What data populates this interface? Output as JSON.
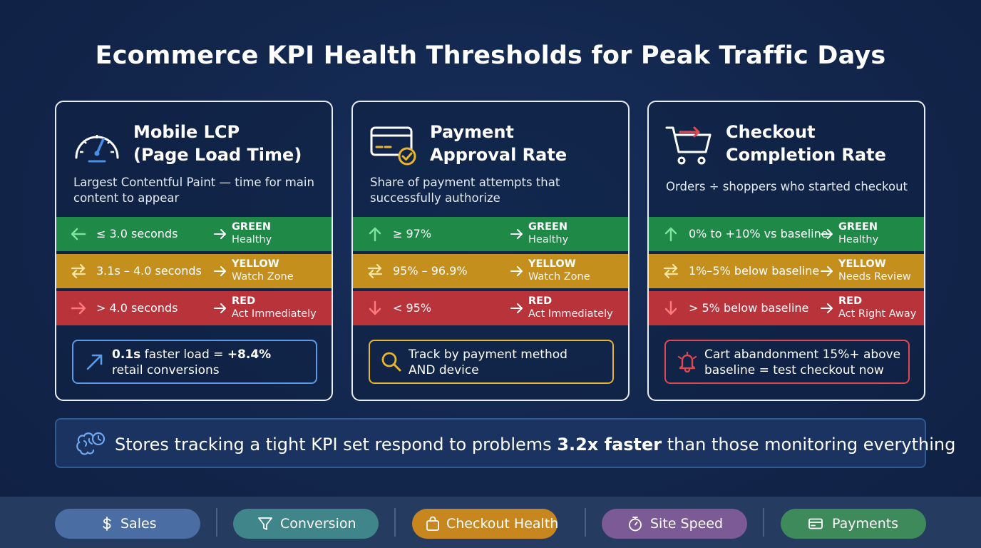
{
  "title": "Ecommerce KPI Health Thresholds for Peak Traffic Days",
  "colors": {
    "green": "#1f8a48",
    "yellow": "#c48f1d",
    "red": "#b8333a",
    "background": "#13254a"
  },
  "cards": [
    {
      "icon": "speedometer-icon",
      "name_line1": "Mobile LCP",
      "name_line2": "(Page Load Time)",
      "description": "Largest Contentful Paint — time for main content to appear",
      "thresholds": [
        {
          "arrow": "arrow-left-icon",
          "metric": "≤ 3.0 seconds",
          "level": "GREEN",
          "action": "Healthy"
        },
        {
          "arrow": "arrows-exchange-icon",
          "metric": "3.1s – 4.0 seconds",
          "level": "YELLOW",
          "action": "Watch Zone"
        },
        {
          "arrow": "arrow-right-icon",
          "metric": "> 4.0 seconds",
          "level": "RED",
          "action": "Act Immediately"
        }
      ],
      "note_icon": "trend-up-icon",
      "note_bold1": "0.1s",
      "note_mid": " faster load = ",
      "note_bold2": "+8.4%",
      "note_line2": "retail conversions"
    },
    {
      "icon": "credit-card-check-icon",
      "name_line1": "Payment",
      "name_line2": "Approval Rate",
      "description": "Share of payment attempts that successfully authorize",
      "thresholds": [
        {
          "arrow": "arrow-up-icon",
          "metric": "≥ 97%",
          "level": "GREEN",
          "action": "Healthy"
        },
        {
          "arrow": "arrows-exchange-icon",
          "metric": "95% – 96.9%",
          "level": "YELLOW",
          "action": "Watch Zone"
        },
        {
          "arrow": "arrow-down-icon",
          "metric": "< 95%",
          "level": "RED",
          "action": "Act Immediately"
        }
      ],
      "note_icon": "search-icon",
      "note_text_line1": "Track by payment method",
      "note_text_line2": "AND device"
    },
    {
      "icon": "shopping-cart-icon",
      "name_line1": "Checkout",
      "name_line2": "Completion Rate",
      "description": "Orders ÷ shoppers who started checkout",
      "thresholds": [
        {
          "arrow": "arrow-up-icon",
          "metric": "0% to +10% vs baseline",
          "level": "GREEN",
          "action": "Healthy"
        },
        {
          "arrow": "arrows-exchange-icon",
          "metric": "1%–5% below baseline",
          "level": "YELLOW",
          "action": "Needs Review"
        },
        {
          "arrow": "arrow-down-icon",
          "metric": "> 5% below baseline",
          "level": "RED",
          "action": "Act Right Away"
        }
      ],
      "note_icon": "bell-alert-icon",
      "note_text_line1": "Cart abandonment 15%+ above",
      "note_text_line2": "baseline = test checkout now"
    }
  ],
  "insight": {
    "icon": "brain-clock-icon",
    "text_before": "Stores tracking a tight KPI set respond to problems ",
    "text_bold": "3.2x faster",
    "text_after": " than those monitoring everything"
  },
  "nav": [
    {
      "label": "Sales",
      "icon": "dollar-icon",
      "color": "#4a6ea3"
    },
    {
      "label": "Conversion",
      "icon": "filter-icon",
      "color": "#3f8589"
    },
    {
      "label": "Checkout Health",
      "icon": "shopping-bag-icon",
      "color": "#c8861f"
    },
    {
      "label": "Site Speed",
      "icon": "stopwatch-icon",
      "color": "#7b5a95"
    },
    {
      "label": "Payments",
      "icon": "credit-card-icon",
      "color": "#3f8a5a"
    }
  ]
}
